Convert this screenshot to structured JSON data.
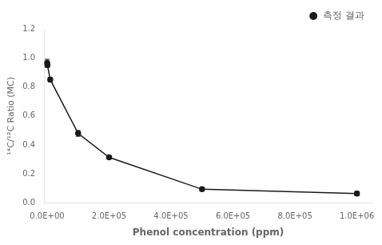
{
  "chart_data": {
    "type": "line",
    "x_label": "Phenol concentration (ppm)",
    "y_label": "¹⁴C/¹²C Ratio (MC)",
    "x": [
      0,
      1000,
      10000,
      100000,
      200000,
      500000,
      1000000
    ],
    "series": [
      {
        "name": "측정 결과",
        "color": "#1a1a1a",
        "marker": "circle",
        "values": [
          0.965,
          0.95,
          0.85,
          0.48,
          0.315,
          0.095,
          0.065
        ],
        "yerr": [
          0.025,
          0.015,
          0.015,
          0.02,
          0.01,
          0.012,
          0.015
        ]
      }
    ],
    "xlim": [
      -10000,
      1050000
    ],
    "xticks": [
      {
        "value": 0,
        "label": "0.0E+00"
      },
      {
        "value": 200000,
        "label": "2.0E+05"
      },
      {
        "value": 400000,
        "label": "4.0E+05"
      },
      {
        "value": 600000,
        "label": "6.0E+05"
      },
      {
        "value": 800000,
        "label": "8.0E+05"
      },
      {
        "value": 1000000,
        "label": "1.0E+06"
      }
    ],
    "ylim": [
      0,
      1.2
    ],
    "yticks": [
      {
        "value": 0,
        "label": "0.0"
      },
      0.2,
      0.4,
      0.6,
      0.8,
      {
        "value": 1.0,
        "label": "1.0"
      },
      1.2
    ],
    "grid": false,
    "legend": "upper right"
  }
}
